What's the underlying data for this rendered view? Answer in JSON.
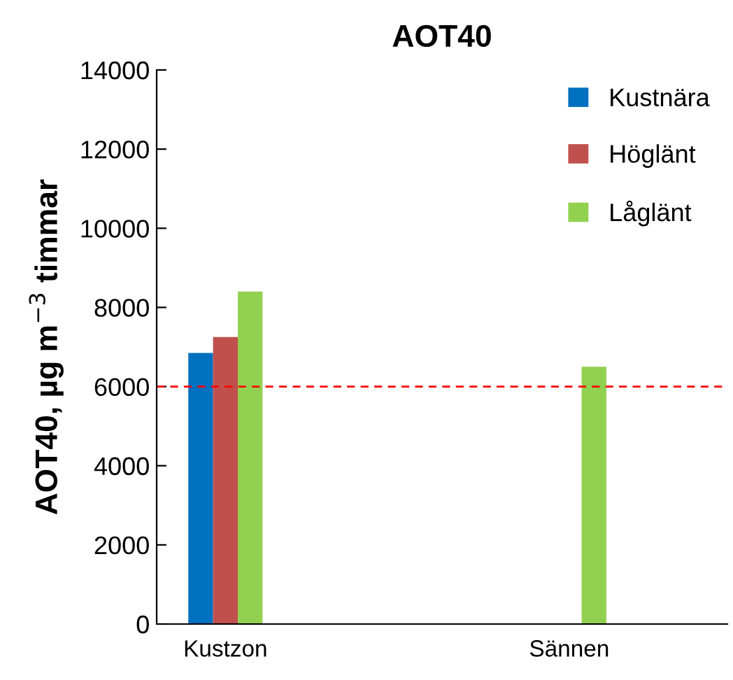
{
  "chart_data": {
    "type": "bar",
    "title": "AOT40",
    "ylabel": "AOT40, µg m$^{−3}$ timmar",
    "categories": [
      "Kustzon",
      "Sännen"
    ],
    "series": [
      {
        "name": "Kustnära",
        "color": "#0070c0",
        "values": [
          6850,
          null
        ]
      },
      {
        "name": "Höglänt",
        "color": "#c0504d",
        "values": [
          7250,
          null
        ]
      },
      {
        "name": "Låglänt",
        "color": "#92d050",
        "values": [
          8400,
          6500
        ]
      }
    ],
    "ylim": [
      0,
      14000
    ],
    "yticks": [
      0,
      2000,
      4000,
      6000,
      8000,
      10000,
      12000,
      14000
    ],
    "ref_lines": [
      {
        "axis": "y",
        "value": 6000,
        "color": "#ff0000",
        "line_style": "dashed"
      }
    ],
    "legend": "top right",
    "grid": false
  }
}
